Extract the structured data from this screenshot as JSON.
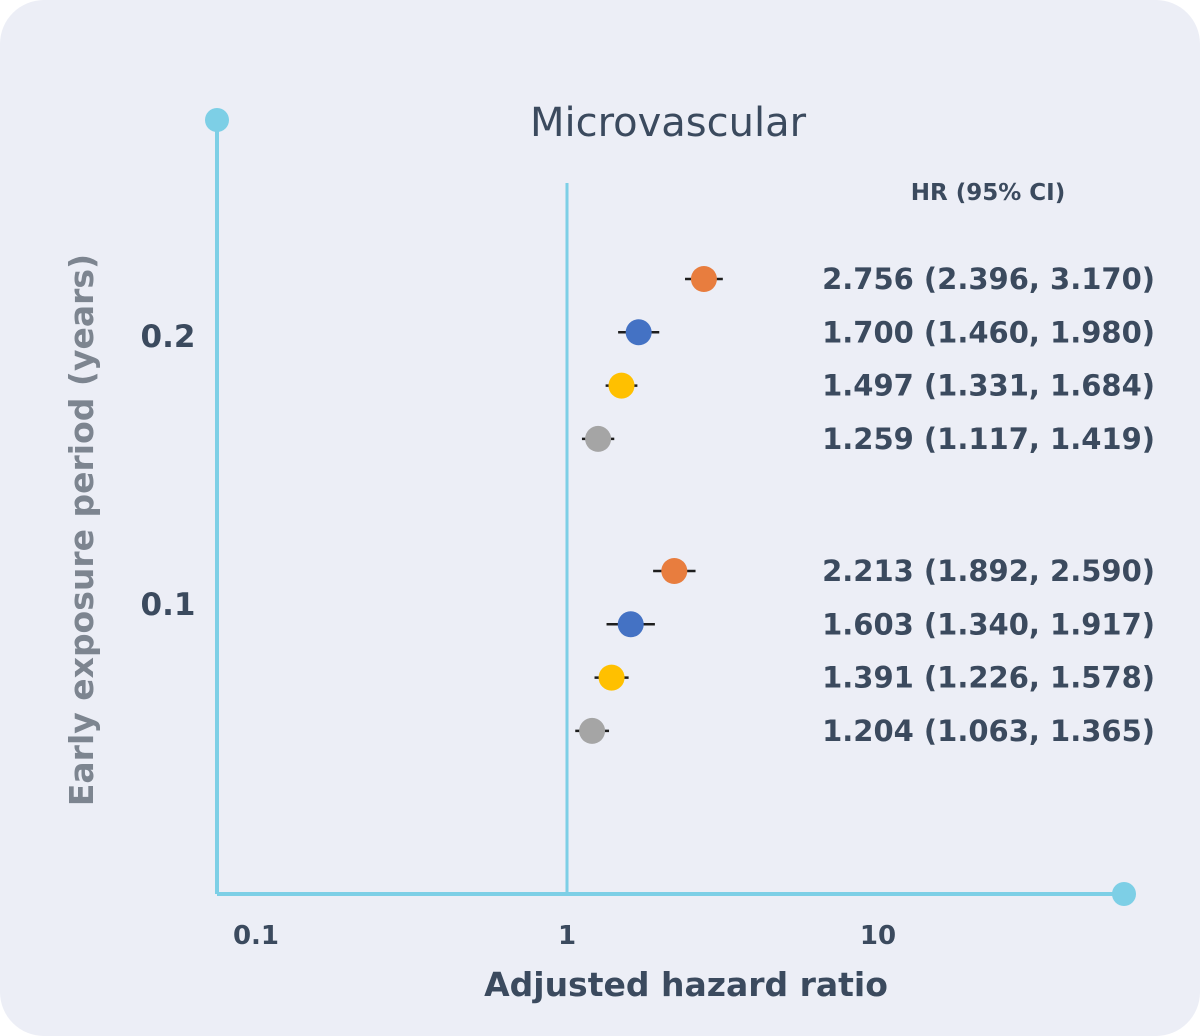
{
  "chart_data": {
    "type": "scatter",
    "subtype": "forest-plot",
    "title": "Microvascular",
    "xlabel": "Adjusted hazard ratio",
    "ylabel": "Early exposure period (years)",
    "x_scale": "log",
    "xlim": [
      0.07,
      55
    ],
    "x_ticks": [
      {
        "value": 0.1,
        "label": "0.1"
      },
      {
        "value": 1,
        "label": "1"
      },
      {
        "value": 10,
        "label": "10"
      }
    ],
    "reference_line": 1,
    "grid": false,
    "legend": "none",
    "ci_header": "HR (95% CI)",
    "groups": [
      {
        "label": "0.2",
        "points": [
          {
            "hr": 2.756,
            "lo": 2.396,
            "hi": 3.17,
            "color": "#e87d3e",
            "text": "2.756 (2.396, 3.170)"
          },
          {
            "hr": 1.7,
            "lo": 1.46,
            "hi": 1.98,
            "color": "#4472c4",
            "text": "1.700 (1.460, 1.980)"
          },
          {
            "hr": 1.497,
            "lo": 1.331,
            "hi": 1.684,
            "color": "#ffc000",
            "text": "1.497 (1.331, 1.684)"
          },
          {
            "hr": 1.259,
            "lo": 1.117,
            "hi": 1.419,
            "color": "#a5a5a5",
            "text": "1.259 (1.117, 1.419)"
          }
        ]
      },
      {
        "label": "0.1",
        "points": [
          {
            "hr": 2.213,
            "lo": 1.892,
            "hi": 2.59,
            "color": "#e87d3e",
            "text": "2.213 (1.892, 2.590)"
          },
          {
            "hr": 1.603,
            "lo": 1.34,
            "hi": 1.917,
            "color": "#4472c4",
            "text": "1.603 (1.340, 1.917)"
          },
          {
            "hr": 1.391,
            "lo": 1.226,
            "hi": 1.578,
            "color": "#ffc000",
            "text": "1.391 (1.226, 1.578)"
          },
          {
            "hr": 1.204,
            "lo": 1.063,
            "hi": 1.365,
            "color": "#a5a5a5",
            "text": "1.204 (1.063, 1.365)"
          }
        ]
      }
    ],
    "colors": {
      "axis": "#7dcfe6",
      "background": "#eceef6",
      "text": "#3b4a5e",
      "ylabel_text": "#7d8590",
      "ci_line": "#1e1e1e"
    }
  }
}
